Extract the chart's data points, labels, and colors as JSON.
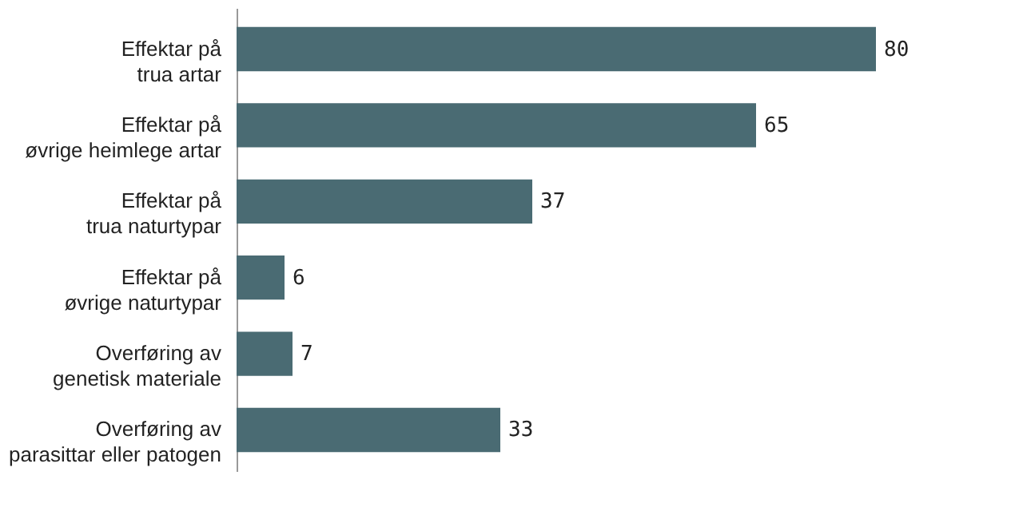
{
  "chart_data": {
    "type": "bar",
    "orientation": "horizontal",
    "categories": [
      "Effektar på\ntrua artar",
      "Effektar på\nøvrige heimlege artar",
      "Effektar på\ntrua naturtypar",
      "Effektar på\nøvrige naturtypar",
      "Overføring av\ngenetisk materiale",
      "Overføring av\nparasittar eller patogen"
    ],
    "values": [
      80,
      65,
      37,
      6,
      7,
      33
    ],
    "color": "#4a6b73",
    "data_labels": true,
    "grid": false
  }
}
